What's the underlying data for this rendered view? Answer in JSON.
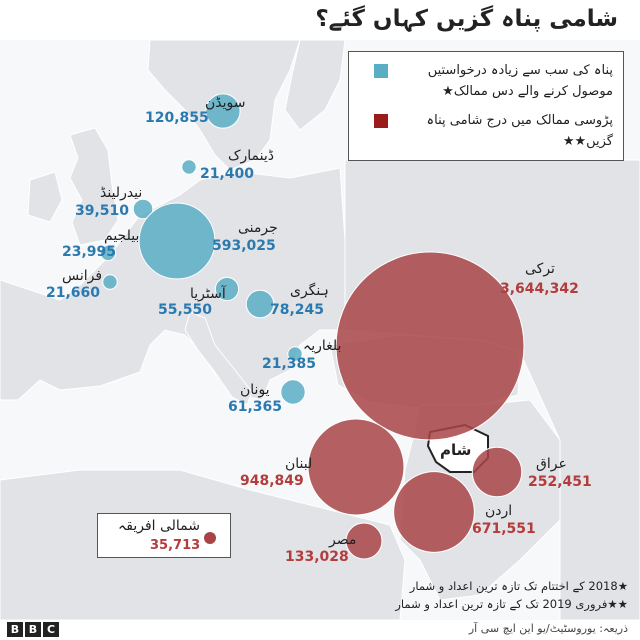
{
  "title": "شامی پناہ گزیں کہاں گئے؟",
  "legend": {
    "blue_label": "پناہ کی سب سے زیادہ درخواستیں موصول کرنے والے دس ممالک★",
    "red_label": "پڑوسی ممالک میں درج شامی پناہ گزیں★★",
    "blue_color": "#5aaec4",
    "red_color": "#9b1a1a"
  },
  "map_data": {
    "europe_top10": [
      {
        "name": "سویڈن",
        "value": "120,855",
        "refugees": 120855
      },
      {
        "name": "ڈینمارک",
        "value": "21,400",
        "refugees": 21400
      },
      {
        "name": "نیدرلینڈ",
        "value": "39,510",
        "refugees": 39510
      },
      {
        "name": "بیلجیم",
        "value": "23,995",
        "refugees": 23995
      },
      {
        "name": "جرمنی",
        "value": "593,025",
        "refugees": 593025
      },
      {
        "name": "فرانس",
        "value": "21,660",
        "refugees": 21660
      },
      {
        "name": "آسٹریا",
        "value": "55,550",
        "refugees": 55550
      },
      {
        "name": "ہنگری",
        "value": "78,245",
        "refugees": 78245
      },
      {
        "name": "بلغاریہ",
        "value": "21,385",
        "refugees": 21385
      },
      {
        "name": "یونان",
        "value": "61,365",
        "refugees": 61365
      }
    ],
    "neighbours": [
      {
        "name": "ترکی",
        "value": "3,644,342",
        "refugees": 3644342
      },
      {
        "name": "لبنان",
        "value": "948,849",
        "refugees": 948849
      },
      {
        "name": "عراق",
        "value": "252,451",
        "refugees": 252451
      },
      {
        "name": "اردن",
        "value": "671,551",
        "refugees": 671551
      },
      {
        "name": "مصر",
        "value": "133,028",
        "refugees": 133028
      }
    ],
    "syria_label": "شام"
  },
  "north_africa": {
    "name": "شمالی افریقہ",
    "value": "35,713",
    "refugees": 35713
  },
  "notes": [
    "★2018 کے اختتام تک تازہ ترین اعداد و شمار",
    "★★فروری 2019 تک کے تازہ ترین اعداد و شمار"
  ],
  "source": "ذریعہ: یوروسٹیٹ/یو این ایچ سی آر",
  "brand": {
    "letters": [
      "B",
      "B",
      "C"
    ]
  }
}
